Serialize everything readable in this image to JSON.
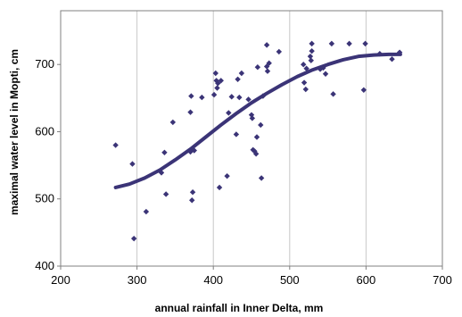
{
  "chart_data": {
    "type": "scatter",
    "xlabel": "annual rainfall in Inner Delta, mm",
    "ylabel": "maximal water level in Mopti, cm",
    "xlim": [
      200,
      700
    ],
    "ylim": [
      400,
      780
    ],
    "x_ticks": [
      200,
      300,
      400,
      500,
      600,
      700
    ],
    "y_ticks": [
      400,
      500,
      600,
      700
    ],
    "grid": "vertical",
    "colors": {
      "points": "#3b3477",
      "trend": "#3b3477",
      "grid": "#c8c8c8",
      "axis": "#808080"
    },
    "series": [
      {
        "kind": "points",
        "x": [
          272,
          294,
          296,
          312,
          332,
          336,
          338,
          347,
          370,
          370,
          371,
          372,
          373,
          375,
          385,
          401,
          403,
          404,
          405,
          406,
          408,
          410,
          418,
          420,
          424,
          430,
          432,
          434,
          437,
          446,
          450,
          451,
          452,
          454,
          456,
          457,
          458,
          462,
          463,
          465,
          470,
          470,
          471,
          473,
          486,
          518,
          519,
          521,
          522,
          527,
          528,
          529,
          529,
          540,
          544,
          547,
          555,
          557,
          578,
          597,
          599,
          618,
          634,
          644
        ],
        "y": [
          580,
          552,
          441,
          481,
          539,
          569,
          507,
          614,
          570,
          629,
          653,
          498,
          510,
          572,
          651,
          655,
          687,
          676,
          665,
          672,
          517,
          676,
          534,
          628,
          652,
          596,
          678,
          651,
          687,
          648,
          625,
          620,
          573,
          571,
          567,
          592,
          696,
          610,
          531,
          653,
          697,
          729,
          690,
          702,
          719,
          700,
          673,
          663,
          694,
          712,
          706,
          731,
          720,
          693,
          695,
          686,
          731,
          656,
          731,
          662,
          731,
          716,
          708,
          718
        ]
      },
      {
        "kind": "trend",
        "x": [
          272,
          290,
          310,
          330,
          350,
          370,
          390,
          410,
          430,
          450,
          470,
          490,
          510,
          530,
          550,
          570,
          590,
          610,
          630,
          645
        ],
        "y": [
          517,
          522,
          531,
          543,
          558,
          574,
          592,
          610,
          627,
          643,
          657,
          670,
          682,
          692,
          700,
          707,
          712,
          714,
          715,
          715
        ]
      }
    ]
  }
}
